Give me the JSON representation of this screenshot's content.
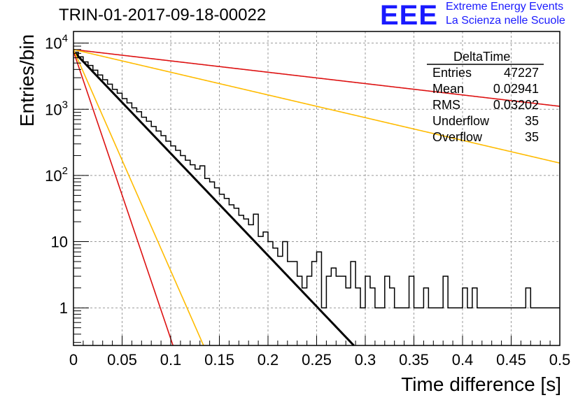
{
  "title": "TRIN-01-2017-09-18-00022",
  "logo": {
    "mark": "EEE",
    "line1": "Extreme Energy Events",
    "line2": "La Scienza nelle Scuole",
    "color": "#1a1aff"
  },
  "stats_box": {
    "name": "DeltaTime",
    "rows": [
      {
        "label": "Entries",
        "value": "47227"
      },
      {
        "label": "Mean",
        "value": "0.02941"
      },
      {
        "label": "RMS",
        "value": "0.03202"
      },
      {
        "label": "Underflow",
        "value": "35"
      },
      {
        "label": "Overflow",
        "value": "35"
      }
    ]
  },
  "chart_data": {
    "type": "histogram",
    "xlabel": "Time difference [s]",
    "ylabel": "Entries/bin",
    "xlim": [
      0,
      0.5
    ],
    "ylim": [
      0.27,
      15000
    ],
    "y_scale": "log",
    "grid": true,
    "x_ticks": [
      "0",
      "0.05",
      "0.1",
      "0.15",
      "0.2",
      "0.25",
      "0.3",
      "0.35",
      "0.4",
      "0.45",
      "0.5"
    ],
    "y_ticks": [
      {
        "value": 1,
        "base": "1",
        "exp": ""
      },
      {
        "value": 10,
        "base": "10",
        "exp": ""
      },
      {
        "value": 100,
        "base": "10",
        "exp": "2"
      },
      {
        "value": 1000,
        "base": "10",
        "exp": "3"
      },
      {
        "value": 10000,
        "base": "10",
        "exp": "4"
      }
    ],
    "bin_width": 0.005,
    "bin_counts": [
      7300,
      6200,
      5200,
      4600,
      3900,
      3300,
      2800,
      2400,
      2000,
      1750,
      1450,
      1250,
      1050,
      920,
      760,
      660,
      550,
      470,
      400,
      330,
      280,
      240,
      200,
      170,
      145,
      125,
      140,
      90,
      80,
      65,
      52,
      45,
      36,
      32,
      25,
      22,
      18,
      26,
      12,
      14,
      10,
      8,
      6,
      10,
      5,
      5,
      3,
      2,
      3,
      5,
      7,
      1,
      3,
      4,
      3,
      3,
      2,
      5,
      2,
      1,
      3,
      2,
      1,
      1,
      3,
      2,
      1,
      1,
      1,
      3,
      1,
      1,
      2,
      1,
      1,
      1,
      3,
      1,
      1,
      1,
      2,
      1,
      2,
      1,
      1,
      1,
      1,
      1,
      1,
      1,
      1,
      1,
      1,
      2,
      1,
      1,
      1,
      1,
      1,
      1
    ],
    "series": [
      {
        "color": "#000000",
        "amplitude": 7500,
        "slope": -35.5,
        "width": 3
      },
      {
        "color": "#dd1111",
        "amplitude": 8000,
        "slope": -3.95,
        "width": 1.6
      },
      {
        "color": "#ffbb00",
        "amplitude": 8000,
        "slope": -7.9,
        "width": 1.6
      },
      {
        "color": "#dd1111",
        "amplitude": 7500,
        "slope": -100,
        "width": 1.6
      },
      {
        "color": "#ffbb00",
        "amplitude": 8000,
        "slope": -77,
        "width": 1.6
      }
    ]
  }
}
